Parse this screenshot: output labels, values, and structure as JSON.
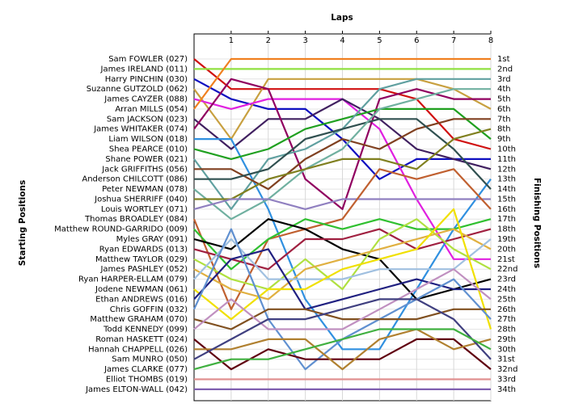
{
  "chart_data": {
    "type": "line",
    "title": "Laps",
    "y_label_left": "Starting Positions",
    "y_label_right": "Finishing Positions",
    "laps": [
      1,
      2,
      3,
      4,
      5,
      6,
      7,
      8
    ],
    "finishing_positions": [
      "1st",
      "2nd",
      "3rd",
      "4th",
      "5th",
      "6th",
      "7th",
      "8th",
      "9th",
      "10th",
      "11th",
      "12th",
      "13th",
      "14th",
      "15th",
      "16th",
      "17th",
      "18th",
      "19th",
      "20th",
      "21st",
      "22nd",
      "23rd",
      "24th",
      "25th",
      "26th",
      "27th",
      "28th",
      "29th",
      "30th",
      "31st",
      "32nd",
      "33rd",
      "34th"
    ],
    "grid": true,
    "series": [
      {
        "name": "Sam FOWLER (027)",
        "color": "#d01010",
        "values": [
          1,
          4,
          4,
          4,
          4,
          4,
          5,
          9,
          10
        ]
      },
      {
        "name": "James IRELAND (011)",
        "color": "#90e040",
        "values": [
          2,
          2,
          2,
          2,
          2,
          2,
          2,
          2,
          2
        ]
      },
      {
        "name": "Harry PINCHIN (030)",
        "color": "#1010c0",
        "values": [
          3,
          5,
          6,
          6,
          9,
          13,
          11,
          11,
          11
        ]
      },
      {
        "name": "Suzanne GUTZOLD (062)",
        "color": "#c8a040",
        "values": [
          4,
          9,
          3,
          3,
          3,
          3,
          3,
          4,
          6
        ]
      },
      {
        "name": "James CAYZER (088)",
        "color": "#e020e0",
        "values": [
          5,
          6,
          5,
          5,
          5,
          8,
          15,
          21,
          21
        ]
      },
      {
        "name": "Arran MILLS (054)",
        "color": "#f08020",
        "values": [
          6,
          1,
          1,
          1,
          1,
          1,
          1,
          1,
          1
        ]
      },
      {
        "name": "Sam JACKSON (023)",
        "color": "#402060",
        "values": [
          7,
          10,
          7,
          7,
          5,
          7,
          10,
          11,
          12
        ]
      },
      {
        "name": "James WHITAKER (074)",
        "color": "#900060",
        "values": [
          8,
          3,
          4,
          13,
          16,
          5,
          4,
          5,
          5
        ]
      },
      {
        "name": "Liam WILSON (018)",
        "color": "#3090e0",
        "values": [
          9,
          9,
          16,
          25,
          30,
          30,
          24,
          18,
          13
        ]
      },
      {
        "name": "Shea PEARCE (010)",
        "color": "#20a020",
        "values": [
          10,
          11,
          10,
          8,
          7,
          6,
          6,
          6,
          9
        ]
      },
      {
        "name": "Shane POWER (021)",
        "color": "#60a0a0",
        "values": [
          11,
          16,
          11,
          10,
          8,
          4,
          3,
          3,
          3
        ]
      },
      {
        "name": "Jack GRIFFITHS (056)",
        "color": "#804020",
        "values": [
          12,
          12,
          14,
          11,
          9,
          10,
          8,
          7,
          7
        ]
      },
      {
        "name": "Anderson CHILCOTT (086)",
        "color": "#305050",
        "values": [
          13,
          13,
          12,
          9,
          8,
          7,
          7,
          10,
          14
        ]
      },
      {
        "name": "Peter NEWMAN (078)",
        "color": "#70b0a0",
        "values": [
          14,
          17,
          15,
          12,
          10,
          6,
          5,
          4,
          4
        ]
      },
      {
        "name": "Joshua SHERRIFF (040)",
        "color": "#808020",
        "values": [
          15,
          15,
          13,
          12,
          11,
          11,
          12,
          9,
          8
        ]
      },
      {
        "name": "Louis WORTLEY (071)",
        "color": "#9080c0",
        "values": [
          16,
          15,
          15,
          16,
          15,
          15,
          15,
          15,
          15
        ]
      },
      {
        "name": "Thomas BROADLEY (084)",
        "color": "#c06030",
        "values": [
          17,
          26,
          19,
          18,
          17,
          12,
          13,
          12,
          16
        ]
      },
      {
        "name": "Matthew ROUND-GARRIDO (009)",
        "color": "#30c030",
        "values": [
          18,
          22,
          19,
          17,
          18,
          17,
          18,
          18,
          17
        ]
      },
      {
        "name": "Myles GRAY (091)",
        "color": "#000000",
        "values": [
          19,
          20,
          17,
          18,
          20,
          21,
          25,
          24,
          23
        ]
      },
      {
        "name": "Ryan EDWARDS (013)",
        "color": "#a02040",
        "values": [
          20,
          21,
          22,
          19,
          19,
          18,
          20,
          19,
          18
        ]
      },
      {
        "name": "Matthew TAYLOR (029)",
        "color": "#b0e040",
        "values": [
          21,
          23,
          24,
          21,
          24,
          19,
          17,
          20,
          22
        ]
      },
      {
        "name": "James PASHLEY (052)",
        "color": "#e0b040",
        "values": [
          22,
          24,
          25,
          22,
          21,
          20,
          19,
          18,
          20
        ]
      },
      {
        "name": "Ryan HARPER-ELLAM (079)",
        "color": "#a0c0e0",
        "values": [
          23,
          19,
          23,
          23,
          23,
          22,
          22,
          22,
          19
        ]
      },
      {
        "name": "Jodene NEWMAN (061)",
        "color": "#f0e000",
        "values": [
          24,
          27,
          24,
          24,
          22,
          21,
          20,
          16,
          28
        ]
      },
      {
        "name": "Ethan ANDREWS (016)",
        "color": "#202080",
        "values": [
          25,
          21,
          20,
          26,
          25,
          24,
          23,
          24,
          24
        ]
      },
      {
        "name": "Chris GOFFIN (032)",
        "color": "#6090d0",
        "values": [
          26,
          18,
          27,
          32,
          29,
          27,
          25,
          23,
          27
        ]
      },
      {
        "name": "Matthew GRAHAM (070)",
        "color": "#805020",
        "values": [
          27,
          28,
          26,
          26,
          27,
          27,
          27,
          26,
          26
        ]
      },
      {
        "name": "Todd KENNEDY (099)",
        "color": "#c090c0",
        "values": [
          28,
          25,
          28,
          28,
          28,
          26,
          24,
          22,
          25
        ]
      },
      {
        "name": "Roman HASKETT (024)",
        "color": "#600010",
        "values": [
          29,
          32,
          30,
          31,
          31,
          31,
          29,
          29,
          32
        ]
      },
      {
        "name": "Hannah CHAPPELL (026)",
        "color": "#b08030",
        "values": [
          30,
          30,
          29,
          29,
          32,
          29,
          28,
          30,
          29
        ]
      },
      {
        "name": "Sam MUNRO (050)",
        "color": "#404080",
        "values": [
          31,
          29,
          27,
          27,
          26,
          25,
          25,
          27,
          31
        ]
      },
      {
        "name": "James CLARKE (077)",
        "color": "#40b040",
        "values": [
          32,
          31,
          31,
          30,
          29,
          28,
          28,
          28,
          30
        ]
      },
      {
        "name": "Elliot THOMBS (019)",
        "color": "#e09090",
        "values": [
          33,
          33,
          33,
          33,
          33,
          33,
          33,
          33,
          33
        ]
      },
      {
        "name": "James ELTON-WALL (042)",
        "color": "#8060b0",
        "values": [
          34,
          34,
          34,
          34,
          34,
          34,
          34,
          34,
          34
        ]
      }
    ]
  }
}
